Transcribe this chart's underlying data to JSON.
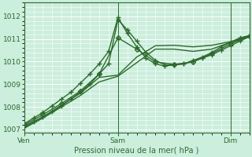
{
  "background_color": "#cceedd",
  "plot_bg_color": "#cceedd",
  "grid_color": "#ffffff",
  "line_color": "#2d6a2d",
  "tick_color": "#2d6a2d",
  "label_color": "#2d6a2d",
  "xlabel": "Pression niveau de la mer( hPa )",
  "yticks": [
    1007,
    1008,
    1009,
    1010,
    1011,
    1012
  ],
  "ylim": [
    1006.85,
    1012.35
  ],
  "xlim": [
    0,
    48
  ],
  "xtick_positions": [
    0,
    20,
    44
  ],
  "xtick_labels": [
    "Ven",
    "Sam",
    "Dim"
  ],
  "vlines": [
    0,
    20,
    44
  ],
  "series": [
    {
      "x": [
        0,
        2,
        4,
        6,
        8,
        10,
        12,
        14,
        16,
        18,
        20,
        22,
        24,
        26,
        28,
        30,
        32,
        34,
        36,
        38,
        40,
        42,
        44,
        46,
        48
      ],
      "y": [
        1007.15,
        1007.35,
        1007.55,
        1007.8,
        1008.05,
        1008.35,
        1008.65,
        1009.0,
        1009.45,
        1009.9,
        1011.85,
        1011.4,
        1010.9,
        1010.4,
        1010.05,
        1009.85,
        1009.85,
        1009.9,
        1010.0,
        1010.15,
        1010.3,
        1010.5,
        1010.7,
        1010.9,
        1011.1
      ],
      "lw": 1.0,
      "ls": "-",
      "marker": "+",
      "ms": 5,
      "alpha": 1.0
    },
    {
      "x": [
        0,
        2,
        4,
        6,
        8,
        10,
        12,
        14,
        16,
        18,
        20,
        22,
        24,
        26,
        28,
        30,
        32,
        34,
        36,
        38,
        40,
        42,
        44,
        46,
        48
      ],
      "y": [
        1007.25,
        1007.5,
        1007.75,
        1008.05,
        1008.35,
        1008.65,
        1009.05,
        1009.45,
        1009.9,
        1010.45,
        1011.95,
        1011.25,
        1010.65,
        1010.15,
        1009.9,
        1009.8,
        1009.85,
        1009.9,
        1010.05,
        1010.2,
        1010.4,
        1010.65,
        1010.85,
        1011.05,
        1011.15
      ],
      "lw": 1.0,
      "ls": "-",
      "marker": "+",
      "ms": 5,
      "alpha": 1.0
    },
    {
      "x": [
        0,
        4,
        8,
        12,
        16,
        20,
        24,
        28,
        32,
        36,
        40,
        44,
        48
      ],
      "y": [
        1007.2,
        1007.65,
        1008.15,
        1008.7,
        1009.45,
        1011.05,
        1010.55,
        1009.98,
        1009.88,
        1009.98,
        1010.35,
        1010.78,
        1011.13
      ],
      "lw": 1.0,
      "ls": "-",
      "marker": "D",
      "ms": 3,
      "alpha": 1.0
    },
    {
      "x": [
        0,
        4,
        8,
        12,
        16,
        20,
        24,
        28,
        32,
        36,
        40,
        44,
        48
      ],
      "y": [
        1007.1,
        1007.55,
        1008.08,
        1008.6,
        1009.3,
        1009.4,
        1010.2,
        1010.7,
        1010.72,
        1010.65,
        1010.72,
        1010.88,
        1011.12
      ],
      "lw": 1.0,
      "ls": "-",
      "marker": null,
      "ms": 0,
      "alpha": 1.0
    },
    {
      "x": [
        0,
        4,
        8,
        12,
        16,
        20,
        24,
        28,
        32,
        36,
        40,
        44,
        48
      ],
      "y": [
        1007.05,
        1007.5,
        1008.0,
        1008.5,
        1009.1,
        1009.35,
        1009.95,
        1010.55,
        1010.55,
        1010.45,
        1010.55,
        1010.85,
        1011.1
      ],
      "lw": 1.0,
      "ls": "-",
      "marker": null,
      "ms": 0,
      "alpha": 1.0
    }
  ]
}
